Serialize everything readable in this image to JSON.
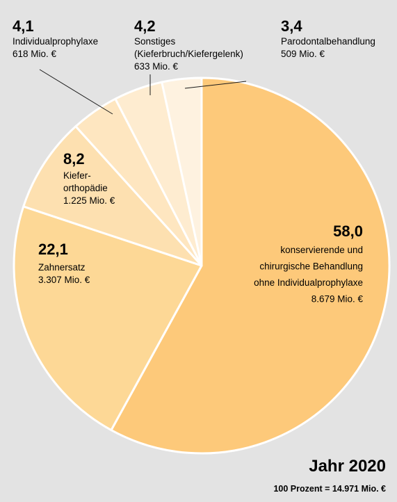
{
  "chart_data": {
    "type": "pie",
    "title": "Jahr 2020",
    "total_note": "100 Prozent = 14.971 Mio. €",
    "slices": [
      {
        "value": 58.0,
        "value_label": "58,0",
        "lines": [
          "konservierende und",
          "chirurgische Behandlung",
          "ohne Individualprophylaxe",
          "8.679 Mio. €"
        ],
        "color": "#fdc97a"
      },
      {
        "value": 22.1,
        "value_label": "22,1",
        "lines": [
          "Zahnersatz",
          "3.307 Mio. €"
        ],
        "color": "#fdd896"
      },
      {
        "value": 8.2,
        "value_label": "8,2",
        "lines": [
          "Kiefer-",
          "orthopädie",
          "1.225 Mio. €"
        ],
        "color": "#fde0b0"
      },
      {
        "value": 4.1,
        "value_label": "4,1",
        "lines": [
          "Individualprophylaxe",
          "618 Mio. €"
        ],
        "color": "#fee6c0"
      },
      {
        "value": 4.2,
        "value_label": "4,2",
        "lines": [
          "Sonstiges",
          "(Kieferbruch/Kiefergelenk)",
          "633 Mio. €"
        ],
        "color": "#feecd0"
      },
      {
        "value": 3.4,
        "value_label": "3,4",
        "lines": [
          "Parodontalbehandlung",
          "509 Mio. €"
        ],
        "color": "#fef2e0"
      }
    ]
  }
}
